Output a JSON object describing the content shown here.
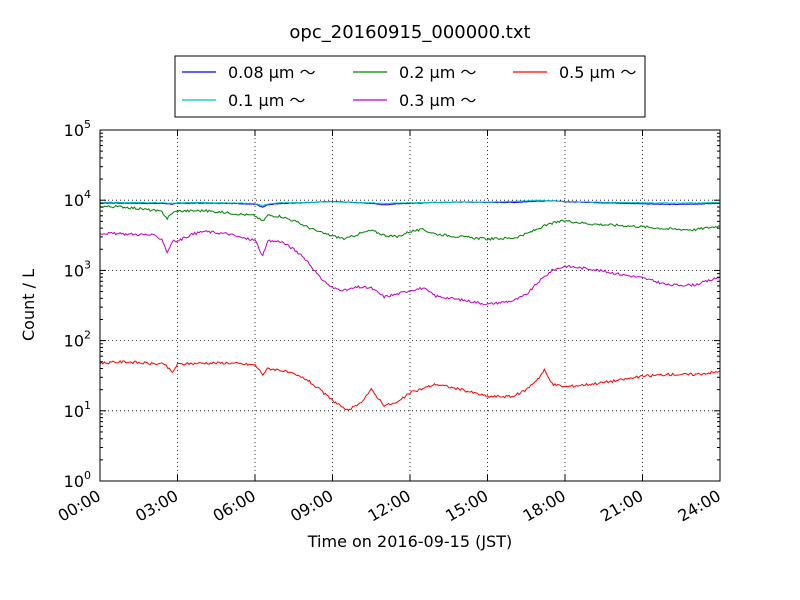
{
  "chart_data": {
    "type": "line",
    "title": "opc_20160915_000000.txt",
    "xlabel": "Time on 2016-09-15 (JST)",
    "ylabel": "Count / L",
    "yscale": "log",
    "xlim": [
      0,
      24
    ],
    "ylim": [
      1,
      100000
    ],
    "grid": true,
    "legend_position": "top-center",
    "x_ticks": [
      "00:00",
      "03:00",
      "06:00",
      "09:00",
      "12:00",
      "15:00",
      "18:00",
      "21:00",
      "24:00"
    ],
    "y_ticks": [
      {
        "base": "10",
        "exp": "0"
      },
      {
        "base": "10",
        "exp": "1"
      },
      {
        "base": "10",
        "exp": "2"
      },
      {
        "base": "10",
        "exp": "3"
      },
      {
        "base": "10",
        "exp": "4"
      },
      {
        "base": "10",
        "exp": "5"
      }
    ],
    "series": [
      {
        "name": "0.08 μm ～",
        "color": "#0000ff",
        "x": [
          0,
          1,
          2,
          2.5,
          2.8,
          3,
          4,
          5,
          6,
          6.3,
          6.5,
          7,
          8,
          9,
          9.5,
          10,
          10.5,
          11,
          11.5,
          12,
          13,
          14,
          15,
          16,
          17,
          17.5,
          18,
          19,
          20,
          21,
          22,
          23,
          24
        ],
        "y": [
          9100,
          9100,
          9000,
          9000,
          8800,
          9000,
          9100,
          9000,
          8800,
          8000,
          8600,
          9000,
          9200,
          9600,
          9400,
          9200,
          9000,
          8600,
          8900,
          9000,
          9300,
          9400,
          9300,
          9300,
          9700,
          9800,
          9500,
          9300,
          9100,
          8900,
          8700,
          8800,
          9000
        ]
      },
      {
        "name": "0.1 μm ～",
        "color": "#00bfbf",
        "x": [
          0,
          1,
          2,
          2.5,
          2.8,
          3,
          4,
          5,
          6,
          6.3,
          6.5,
          7,
          8,
          9,
          9.5,
          10,
          10.5,
          11,
          11.5,
          12,
          13,
          14,
          15,
          16,
          17,
          17.5,
          18,
          19,
          20,
          21,
          22,
          23,
          24
        ],
        "y": [
          9300,
          9300,
          9200,
          9200,
          9000,
          9200,
          9300,
          9200,
          9000,
          8400,
          8800,
          9200,
          9300,
          9500,
          9400,
          9300,
          9200,
          9000,
          9100,
          9200,
          9300,
          9400,
          9400,
          9600,
          10000,
          9800,
          9600,
          9400,
          9300,
          9200,
          9100,
          9100,
          9300
        ]
      },
      {
        "name": "0.2 μm ～",
        "color": "#008000",
        "x": [
          0,
          1,
          2,
          2.4,
          2.6,
          2.8,
          3,
          4,
          5,
          5.5,
          6,
          6.3,
          6.5,
          7,
          7.5,
          8,
          8.5,
          9,
          9.5,
          10,
          10.5,
          11,
          11.5,
          12,
          12.5,
          13,
          14,
          15,
          16,
          16.5,
          17,
          17.5,
          18,
          19,
          20,
          21,
          22,
          23,
          24
        ],
        "y": [
          8200,
          8000,
          7200,
          6800,
          5500,
          6600,
          7000,
          7100,
          6600,
          6300,
          6000,
          5000,
          6100,
          5900,
          5100,
          4200,
          3500,
          3100,
          2800,
          3300,
          3700,
          3200,
          3000,
          3600,
          3800,
          3300,
          3000,
          2800,
          2900,
          3300,
          4000,
          4700,
          5100,
          4600,
          4400,
          4200,
          3900,
          3800,
          4300
        ]
      },
      {
        "name": "0.3 μm ～",
        "color": "#bf00bf",
        "x": [
          0,
          1,
          2,
          2.4,
          2.6,
          2.8,
          3,
          3.5,
          4,
          5,
          5.5,
          6,
          6.3,
          6.5,
          7,
          7.5,
          8,
          8.5,
          9,
          9.5,
          10,
          10.5,
          11,
          11.5,
          12,
          12.5,
          13,
          14,
          15,
          16,
          16.5,
          17,
          17.5,
          18,
          19,
          20,
          21,
          22,
          23,
          24
        ],
        "y": [
          3400,
          3300,
          3200,
          2800,
          1800,
          2600,
          2600,
          3200,
          3600,
          3300,
          2900,
          2700,
          1600,
          2600,
          2600,
          2000,
          1400,
          800,
          560,
          520,
          580,
          560,
          420,
          460,
          520,
          560,
          430,
          380,
          330,
          370,
          450,
          700,
          1000,
          1150,
          1050,
          900,
          780,
          620,
          620,
          800
        ]
      },
      {
        "name": "0.5 μm ～",
        "color": "#ff0000",
        "x": [
          0,
          1,
          2,
          2.5,
          2.8,
          3,
          4,
          5,
          6,
          6.3,
          6.5,
          7,
          7.5,
          8,
          8.5,
          9,
          9.3,
          9.5,
          10,
          10.5,
          11,
          11.5,
          12,
          13,
          14,
          15,
          16,
          16.5,
          17,
          17.2,
          17.5,
          18,
          19,
          20,
          21,
          22,
          23,
          24
        ],
        "y": [
          48,
          50,
          47,
          46,
          35,
          46,
          48,
          48,
          45,
          33,
          40,
          38,
          33,
          28,
          20,
          14,
          12,
          10,
          12,
          20,
          12,
          13,
          18,
          24,
          20,
          16,
          16,
          20,
          30,
          38,
          24,
          22,
          24,
          27,
          31,
          33,
          33,
          36
        ]
      }
    ]
  }
}
